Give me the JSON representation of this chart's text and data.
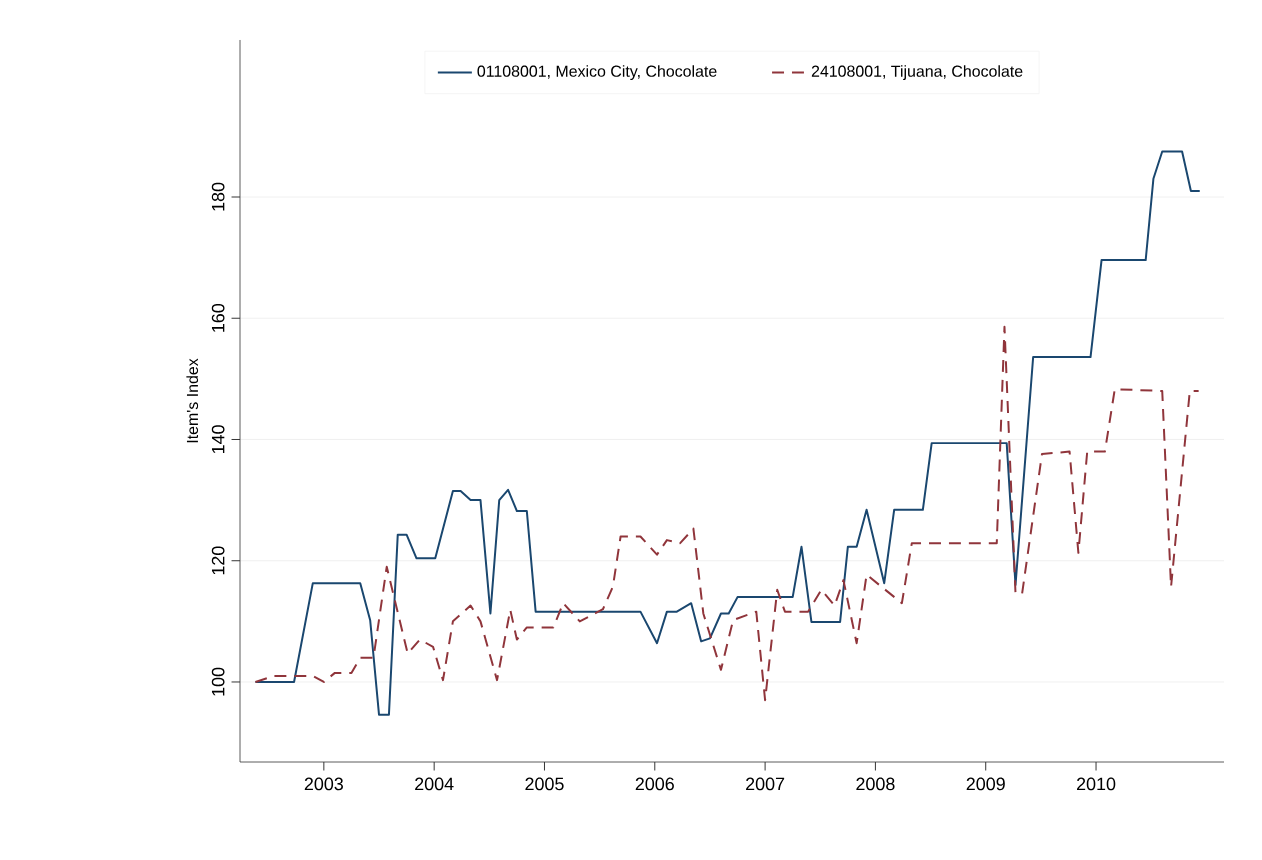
{
  "chart_data": {
    "type": "line",
    "ylabel": "Item's Index",
    "xlim": [
      2002.24,
      2011.16
    ],
    "ylim": [
      86.8,
      205.9
    ],
    "xticks": [
      2003,
      2004,
      2005,
      2006,
      2007,
      2008,
      2009,
      2010
    ],
    "yticks": [
      100,
      120,
      140,
      160,
      180
    ],
    "grid": "y",
    "legend": "top",
    "series": [
      {
        "name": "01108001, Mexico City, Chocolate",
        "color": "#1a476f",
        "line_style": "solid",
        "x": [
          2002.38,
          2002.73,
          2002.9,
          2003.33,
          2003.42,
          2003.5,
          2003.59,
          2003.67,
          2003.75,
          2003.84,
          2004.01,
          2004.17,
          2004.24,
          2004.33,
          2004.42,
          2004.51,
          2004.59,
          2004.67,
          2004.75,
          2004.84,
          2004.92,
          2005.87,
          2006.02,
          2006.11,
          2006.2,
          2006.33,
          2006.42,
          2006.5,
          2006.6,
          2006.67,
          2006.75,
          2007.25,
          2007.33,
          2007.42,
          2007.68,
          2007.75,
          2007.83,
          2007.92,
          2008.08,
          2008.17,
          2008.43,
          2008.51,
          2009.19,
          2009.27,
          2009.43,
          2009.95,
          2010.05,
          2010.45,
          2010.52,
          2010.6,
          2010.78,
          2010.86,
          2010.94
        ],
        "values": [
          100,
          100,
          116.3,
          116.3,
          110.2,
          94.6,
          94.6,
          124.3,
          124.3,
          120.4,
          120.4,
          131.5,
          131.5,
          130,
          130,
          111.3,
          130,
          131.7,
          128.2,
          128.2,
          111.6,
          111.6,
          106.4,
          111.6,
          111.6,
          113,
          106.7,
          107.2,
          111.3,
          111.3,
          114,
          114,
          122.3,
          109.9,
          109.9,
          122.3,
          122.3,
          128.4,
          116.3,
          128.4,
          128.4,
          139.4,
          139.4,
          116,
          153.6,
          153.6,
          169.6,
          169.6,
          183,
          187.5,
          187.5,
          181,
          181
        ]
      },
      {
        "name": "24108001, Tijuana, Chocolate",
        "color": "#90353b",
        "line_style": "dashed",
        "x": [
          2002.38,
          2002.55,
          2002.9,
          2003.0,
          2003.1,
          2003.25,
          2003.33,
          2003.45,
          2003.57,
          2003.76,
          2003.87,
          2003.99,
          2004.08,
          2004.17,
          2004.33,
          2004.42,
          2004.57,
          2004.69,
          2004.75,
          2004.84,
          2005.08,
          2005.17,
          2005.32,
          2005.53,
          2005.62,
          2005.69,
          2005.87,
          2006.02,
          2006.11,
          2006.23,
          2006.35,
          2006.44,
          2006.6,
          2006.71,
          2006.92,
          2007.0,
          2007.11,
          2007.18,
          2007.39,
          2007.51,
          2007.63,
          2007.71,
          2007.83,
          2007.92,
          2008.24,
          2008.33,
          2009.1,
          2009.17,
          2009.27,
          2009.33,
          2009.51,
          2009.76,
          2009.84,
          2009.92,
          2010.08,
          2010.17,
          2010.6,
          2010.68,
          2010.85,
          2010.93
        ],
        "values": [
          100,
          101,
          101,
          100,
          101.5,
          101.5,
          104,
          104,
          119,
          104.7,
          107,
          105.8,
          100.3,
          110,
          112.6,
          110,
          100.3,
          111.9,
          107,
          109,
          109,
          113,
          110,
          112,
          115.7,
          124,
          124,
          121,
          123.4,
          122.9,
          125.3,
          111.3,
          102,
          110.2,
          111.6,
          97,
          115.2,
          111.6,
          111.6,
          115.2,
          112.6,
          116.8,
          106.4,
          117.7,
          113,
          122.9,
          122.9,
          158.6,
          114.6,
          114.6,
          137.6,
          138,
          121.3,
          138,
          138,
          148.3,
          148,
          115.7,
          148,
          148
        ]
      }
    ]
  }
}
